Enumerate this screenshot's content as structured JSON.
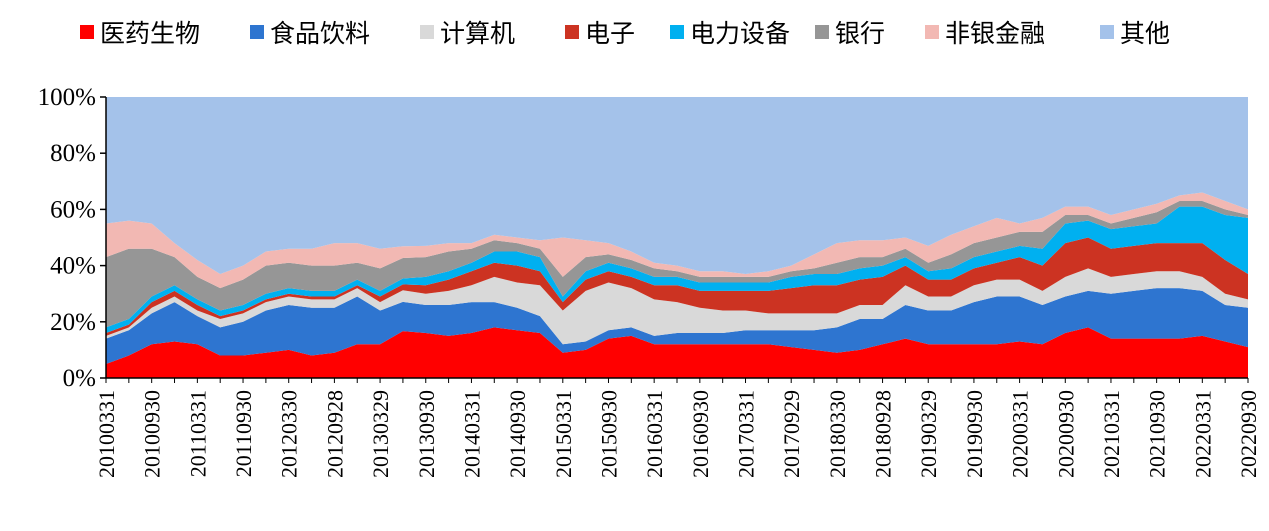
{
  "chart_data": {
    "type": "area",
    "stacked": true,
    "normalized": true,
    "title": "",
    "xlabel": "",
    "ylabel": "",
    "ylim": [
      0,
      100
    ],
    "yticks": [
      "0%",
      "20%",
      "40%",
      "60%",
      "80%",
      "100%"
    ],
    "xtick_labels": [
      "20100331",
      "20100930",
      "20110331",
      "20110930",
      "20120330",
      "20120928",
      "20130329",
      "20130930",
      "20140331",
      "20140930",
      "20150331",
      "20150930",
      "20160331",
      "20160930",
      "20170331",
      "20170929",
      "20180330",
      "20180928",
      "20190329",
      "20190930",
      "20200331",
      "20200930",
      "20210331",
      "20210930",
      "20220331",
      "20220930"
    ],
    "x": [
      "20100331",
      "20100630",
      "20100930",
      "20101231",
      "20110331",
      "20110630",
      "20110930",
      "20111230",
      "20120330",
      "20120629",
      "20120928",
      "20121231",
      "20130329",
      "20130628",
      "20130930",
      "20131231",
      "20140331",
      "20140630",
      "20140930",
      "20141231",
      "20150331",
      "20150630",
      "20150930",
      "20151231",
      "20160331",
      "20160630",
      "20160930",
      "20161230",
      "20170331",
      "20170630",
      "20170929",
      "20171229",
      "20180330",
      "20180629",
      "20180928",
      "20181228",
      "20190329",
      "20190628",
      "20190930",
      "20191231",
      "20200331",
      "20200630",
      "20200930",
      "20201231",
      "20210331",
      "20210630",
      "20210930",
      "20211231",
      "20220331",
      "20220630",
      "20220930"
    ],
    "legend_position": "top",
    "grid": false,
    "series": [
      {
        "name": "医药生物",
        "color": "#ff0000",
        "values": [
          5,
          8,
          12,
          13,
          12,
          8,
          8,
          9,
          10,
          8,
          9,
          12,
          12,
          16,
          16,
          15,
          16,
          18,
          17,
          16,
          9,
          10,
          14,
          15,
          12,
          12,
          12,
          12,
          12,
          12,
          11,
          10,
          9,
          10,
          12,
          14,
          12,
          12,
          12,
          12,
          13,
          12,
          16,
          18,
          14,
          14,
          14,
          14,
          15,
          13,
          11
        ]
      },
      {
        "name": "食品饮料",
        "color": "#2e75d0",
        "values": [
          9,
          9,
          11,
          14,
          10,
          10,
          12,
          15,
          16,
          17,
          16,
          17,
          12,
          10,
          10,
          11,
          11,
          9,
          8,
          6,
          3,
          3,
          3,
          3,
          3,
          4,
          4,
          4,
          5,
          5,
          6,
          7,
          9,
          11,
          9,
          12,
          12,
          12,
          15,
          17,
          16,
          14,
          13,
          13,
          16,
          17,
          18,
          18,
          16,
          13,
          14
        ]
      },
      {
        "name": "计算机",
        "color": "#d9d9d9",
        "values": [
          1,
          1,
          2,
          2,
          2,
          3,
          3,
          3,
          3,
          3,
          3,
          3,
          3,
          4,
          4,
          5,
          6,
          9,
          9,
          11,
          12,
          18,
          17,
          14,
          13,
          11,
          9,
          8,
          7,
          6,
          6,
          6,
          5,
          5,
          5,
          7,
          5,
          5,
          6,
          6,
          6,
          5,
          7,
          8,
          6,
          6,
          6,
          6,
          5,
          4,
          3
        ]
      },
      {
        "name": "电子",
        "color": "#cc3322",
        "values": [
          1,
          1,
          2,
          2,
          2,
          1,
          1,
          1,
          1,
          1,
          1,
          1,
          2,
          2,
          3,
          4,
          5,
          5,
          6,
          5,
          3,
          4,
          4,
          4,
          5,
          6,
          6,
          7,
          7,
          8,
          9,
          10,
          10,
          9,
          10,
          7,
          6,
          6,
          6,
          6,
          8,
          9,
          12,
          11,
          10,
          10,
          10,
          10,
          12,
          12,
          9
        ]
      },
      {
        "name": "电力设备",
        "color": "#00b0f0",
        "values": [
          2,
          2,
          2,
          2,
          2,
          2,
          2,
          2,
          2,
          2,
          2,
          2,
          2,
          2,
          3,
          3,
          3,
          4,
          5,
          5,
          2,
          3,
          3,
          3,
          3,
          3,
          3,
          3,
          3,
          3,
          4,
          4,
          4,
          4,
          4,
          3,
          3,
          4,
          4,
          4,
          4,
          6,
          7,
          6,
          7,
          7,
          7,
          13,
          13,
          16,
          20
        ]
      },
      {
        "name": "银行",
        "color": "#969696",
        "values": [
          25,
          25,
          17,
          10,
          8,
          8,
          9,
          10,
          9,
          9,
          9,
          6,
          8,
          7,
          7,
          7,
          5,
          4,
          3,
          3,
          7,
          5,
          3,
          3,
          3,
          2,
          2,
          2,
          2,
          2,
          2,
          2,
          4,
          4,
          3,
          3,
          3,
          5,
          5,
          5,
          5,
          6,
          3,
          2,
          2,
          3,
          4,
          2,
          2,
          2,
          1
        ]
      },
      {
        "name": "非银金融",
        "color": "#f2b8b3",
        "values": [
          12,
          10,
          9,
          5,
          6,
          5,
          5,
          5,
          5,
          6,
          8,
          7,
          7,
          4,
          4,
          3,
          2,
          2,
          2,
          3,
          14,
          6,
          4,
          3,
          2,
          2,
          2,
          2,
          1,
          2,
          2,
          5,
          7,
          6,
          6,
          4,
          6,
          7,
          6,
          7,
          3,
          5,
          3,
          3,
          3,
          3,
          3,
          2,
          3,
          3,
          2
        ]
      },
      {
        "name": "其他",
        "color": "#a4c2ea",
        "values": [
          45,
          44,
          45,
          52,
          58,
          63,
          60,
          55,
          54,
          54,
          52,
          52,
          54,
          51,
          53,
          52,
          52,
          49,
          50,
          51,
          50,
          51,
          52,
          55,
          59,
          60,
          62,
          62,
          63,
          62,
          60,
          56,
          52,
          51,
          51,
          50,
          53,
          49,
          46,
          43,
          45,
          43,
          39,
          39,
          42,
          40,
          38,
          35,
          34,
          37,
          40
        ]
      }
    ]
  }
}
